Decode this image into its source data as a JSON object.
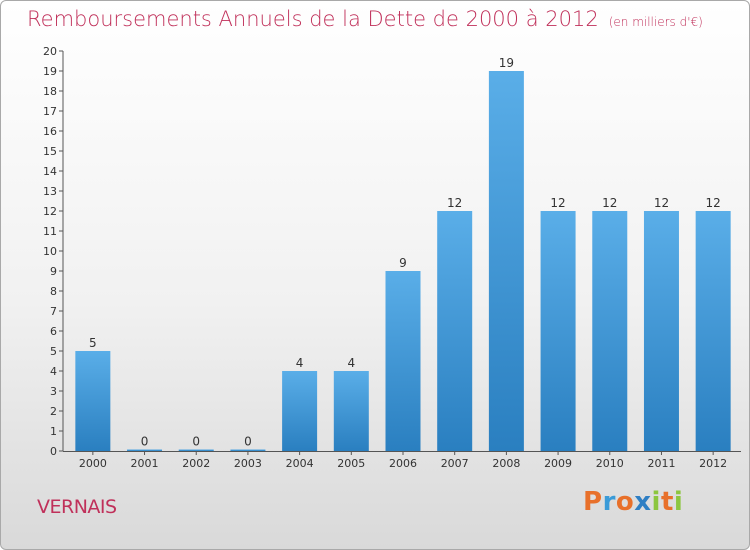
{
  "header": {
    "title": "Remboursements Annuels de la Dette de 2000 à 2012",
    "unit": "(en milliers d'€)"
  },
  "footer": {
    "commune": "VERNAIS",
    "logo_letters": [
      {
        "ch": "P",
        "color": "#e8702a"
      },
      {
        "ch": "r",
        "color": "#3a9bd8"
      },
      {
        "ch": "o",
        "color": "#e8702a"
      },
      {
        "ch": "x",
        "color": "#2f7fc4"
      },
      {
        "ch": "i",
        "color": "#8cc63f"
      },
      {
        "ch": "t",
        "color": "#e8702a"
      },
      {
        "ch": "i",
        "color": "#8cc63f"
      }
    ]
  },
  "chart_data": {
    "type": "bar",
    "title": "Remboursements Annuels de la Dette de 2000 à 2012",
    "unit": "(en milliers d'€)",
    "categories": [
      "2000",
      "2001",
      "2002",
      "2003",
      "2004",
      "2005",
      "2006",
      "2007",
      "2008",
      "2009",
      "2010",
      "2011",
      "2012"
    ],
    "values": [
      5,
      0,
      0,
      0,
      4,
      4,
      9,
      12,
      19,
      12,
      12,
      12,
      12
    ],
    "ylim": [
      0,
      20
    ],
    "yticks": [
      0,
      1,
      2,
      3,
      4,
      5,
      6,
      7,
      8,
      9,
      10,
      11,
      12,
      13,
      14,
      15,
      16,
      17,
      18,
      19,
      20
    ],
    "grid": false,
    "bar_color_top": "#5aaee8",
    "bar_color_bottom": "#2a7fc0"
  }
}
